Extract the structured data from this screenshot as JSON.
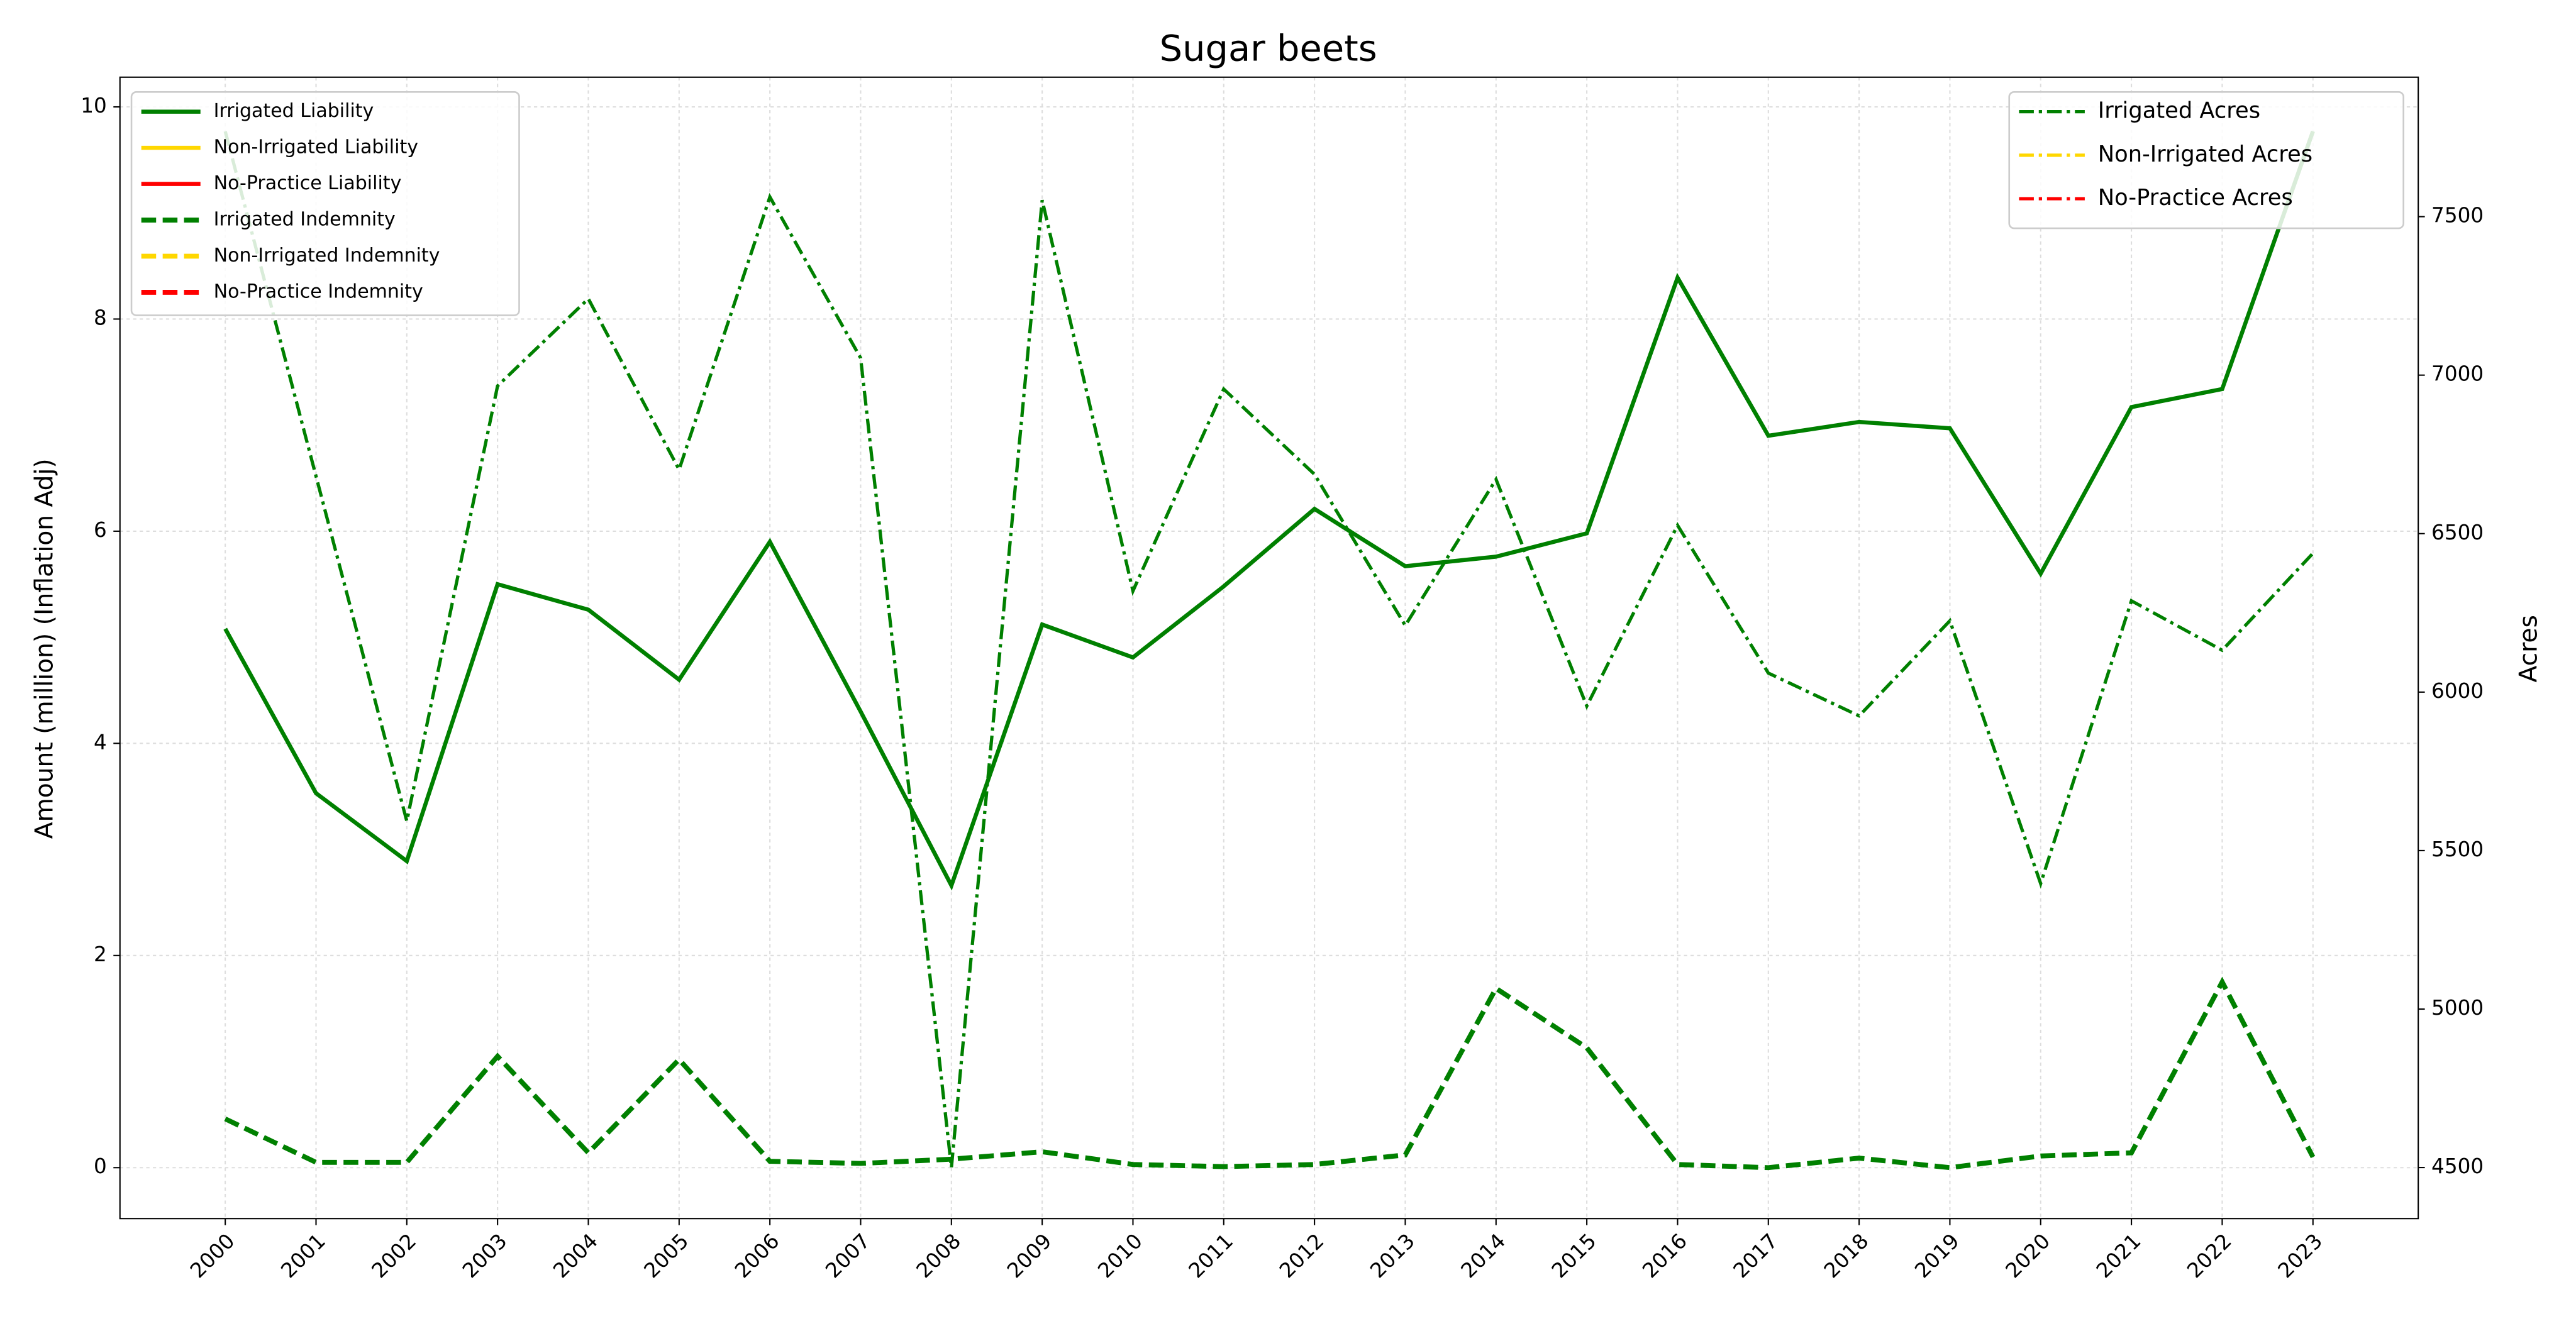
{
  "chart_data": {
    "type": "line",
    "title": "Sugar beets",
    "ylabel": "Amount (million) (Inflation Adj)",
    "y2label": "Acres",
    "x": [
      2000,
      2001,
      2002,
      2003,
      2004,
      2005,
      2006,
      2007,
      2008,
      2009,
      2010,
      2011,
      2012,
      2013,
      2014,
      2015,
      2016,
      2017,
      2018,
      2019,
      2020,
      2021,
      2022,
      2023
    ],
    "xticks": [
      2000,
      2001,
      2002,
      2003,
      2004,
      2005,
      2006,
      2007,
      2008,
      2009,
      2010,
      2011,
      2012,
      2013,
      2014,
      2015,
      2016,
      2017,
      2018,
      2019,
      2020,
      2021,
      2022,
      2023
    ],
    "xlim": [
      1998.84,
      2024.16
    ],
    "ylim": [
      -0.48,
      10.28
    ],
    "yticks": [
      0,
      2,
      4,
      6,
      8,
      10
    ],
    "y2lim": [
      4339,
      7940
    ],
    "y2ticks": [
      4500,
      5000,
      5500,
      6000,
      6500,
      7000,
      7500
    ],
    "grid": true,
    "legend": "upper left",
    "legend2": "upper right",
    "series": [
      {
        "name": "Irrigated Liability",
        "color": "#008000",
        "linestyle": "solid",
        "axis": "y",
        "values": [
          5.08,
          3.53,
          2.89,
          5.5,
          5.26,
          4.6,
          5.9,
          4.3,
          2.66,
          5.12,
          4.81,
          5.48,
          6.21,
          5.67,
          5.76,
          5.98,
          8.39,
          6.9,
          7.03,
          6.97,
          5.6,
          7.17,
          7.34,
          9.77
        ]
      },
      {
        "name": "Non-Irrigated Liability",
        "color": "#ffd700",
        "linestyle": "solid",
        "axis": "y",
        "values": [
          null,
          null,
          null,
          null,
          null,
          null,
          null,
          null,
          null,
          null,
          null,
          null,
          null,
          null,
          null,
          null,
          null,
          null,
          null,
          null,
          null,
          null,
          null,
          null
        ]
      },
      {
        "name": "No-Practice Liability",
        "color": "#ff0000",
        "linestyle": "solid",
        "axis": "y",
        "values": [
          null,
          null,
          null,
          null,
          null,
          null,
          null,
          null,
          null,
          null,
          null,
          null,
          null,
          null,
          null,
          null,
          null,
          null,
          null,
          null,
          null,
          null,
          null,
          null
        ]
      },
      {
        "name": "Irrigated Indemnity",
        "color": "#008000",
        "linestyle": "dashed",
        "axis": "y",
        "values": [
          0.46,
          0.05,
          0.05,
          1.05,
          0.14,
          1.02,
          0.06,
          0.04,
          0.08,
          0.15,
          0.03,
          0.01,
          0.03,
          0.12,
          1.69,
          1.13,
          0.03,
          0.0,
          0.09,
          0.0,
          0.11,
          0.14,
          1.75,
          0.1
        ]
      },
      {
        "name": "Non-Irrigated Indemnity",
        "color": "#ffd700",
        "linestyle": "dashed",
        "axis": "y",
        "values": [
          null,
          null,
          null,
          null,
          null,
          null,
          null,
          null,
          null,
          null,
          null,
          null,
          null,
          null,
          null,
          null,
          null,
          null,
          null,
          null,
          null,
          null,
          null,
          null
        ]
      },
      {
        "name": "No-Practice Indemnity",
        "color": "#ff0000",
        "linestyle": "dashed",
        "axis": "y",
        "values": [
          null,
          null,
          null,
          null,
          null,
          null,
          null,
          null,
          null,
          null,
          null,
          null,
          null,
          null,
          null,
          null,
          null,
          null,
          null,
          null,
          null,
          null,
          null,
          null
        ]
      },
      {
        "name": "Irrigated Acres",
        "color": "#008000",
        "linestyle": "dashdot",
        "axis": "y2",
        "values": [
          7769,
          6681,
          5593,
          6966,
          7241,
          6702,
          7562,
          7054,
          4500,
          7552,
          6319,
          6956,
          6687,
          6210,
          6671,
          5956,
          6526,
          6060,
          5925,
          6225,
          5396,
          6288,
          6132,
          6438
        ]
      },
      {
        "name": "Non-Irrigated Acres",
        "color": "#ffd700",
        "linestyle": "dashdot",
        "axis": "y2",
        "values": [
          null,
          null,
          null,
          null,
          null,
          null,
          null,
          null,
          null,
          null,
          null,
          null,
          null,
          null,
          null,
          null,
          null,
          null,
          null,
          null,
          null,
          null,
          null,
          null
        ]
      },
      {
        "name": "No-Practice Acres",
        "color": "#ff0000",
        "linestyle": "dashdot",
        "axis": "y2",
        "values": [
          null,
          null,
          null,
          null,
          null,
          null,
          null,
          null,
          null,
          null,
          null,
          null,
          null,
          null,
          null,
          null,
          null,
          null,
          null,
          null,
          null,
          null,
          null,
          null
        ]
      }
    ]
  }
}
